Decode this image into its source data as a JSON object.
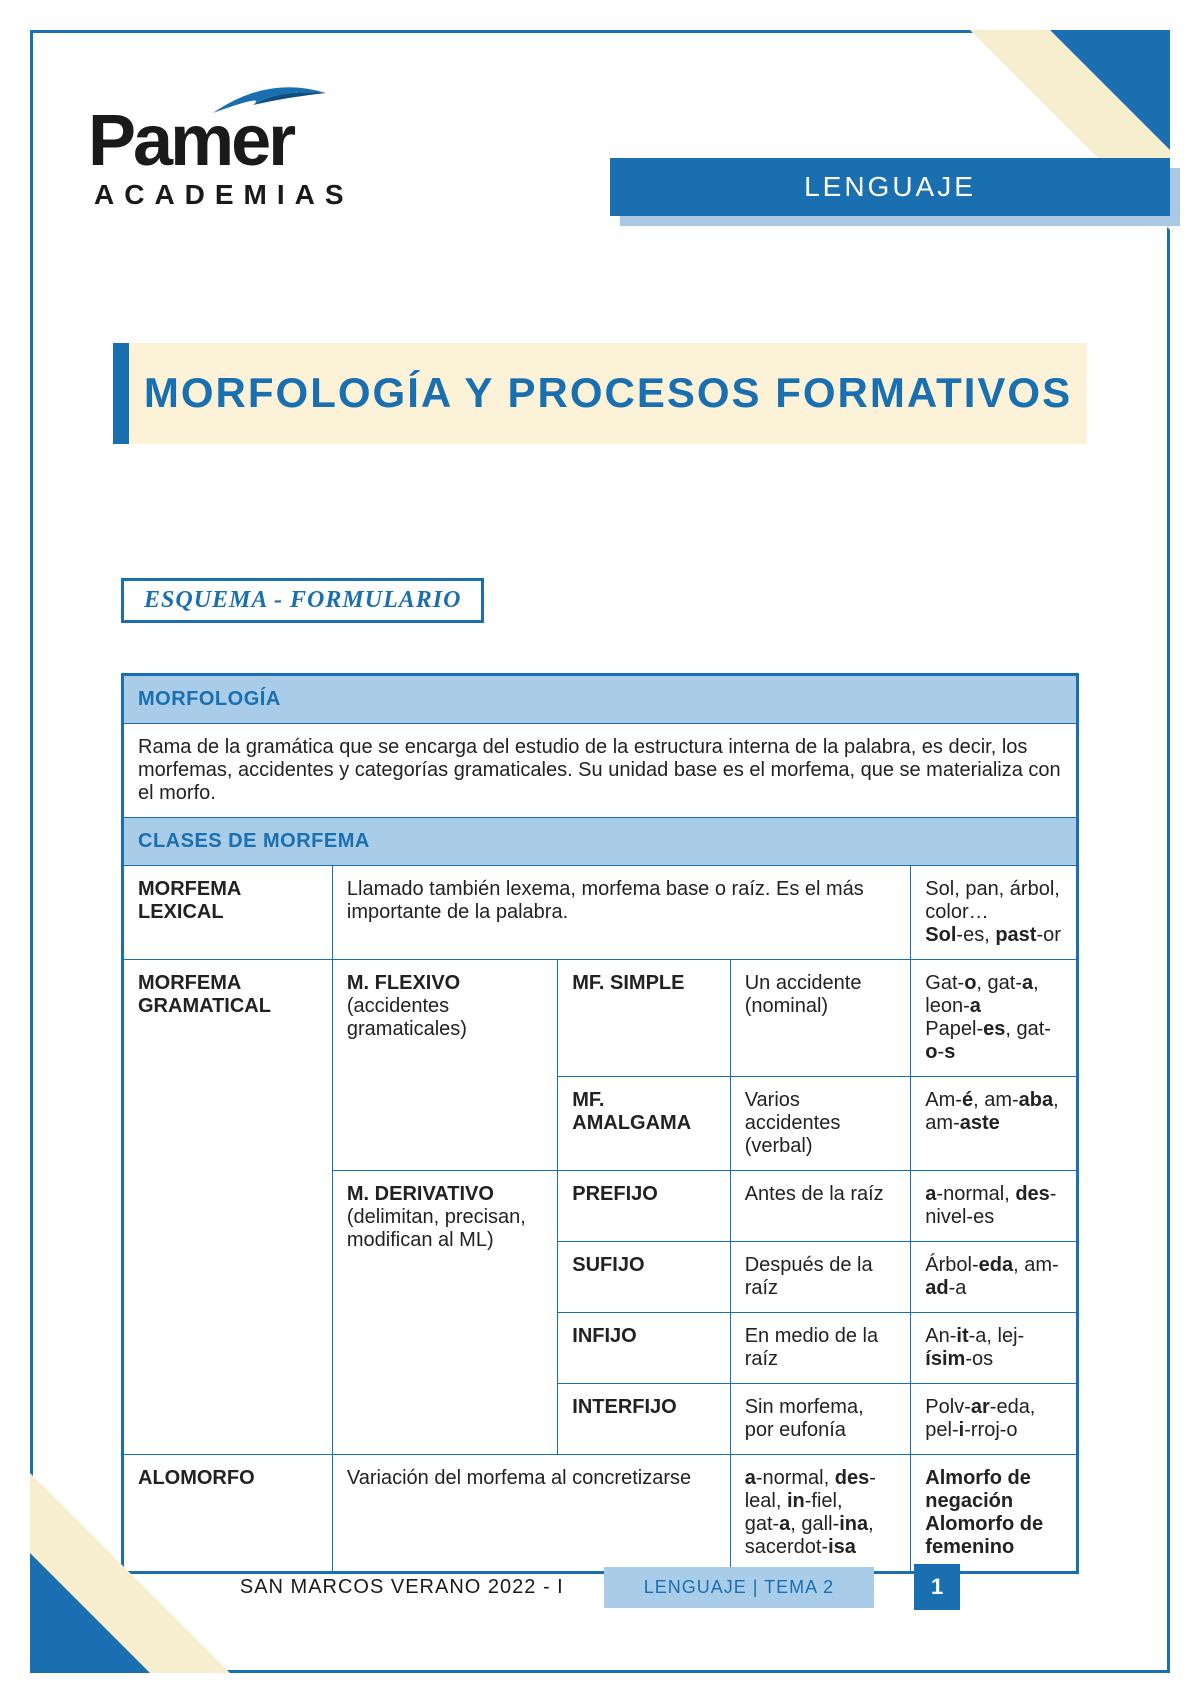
{
  "colors": {
    "primary": "#1a6fb0",
    "light_blue": "#a9cde9",
    "cream": "#fbf2d8",
    "corner_cream": "#f7edcf",
    "shadow_blue": "#a9c8e4",
    "text": "#222222"
  },
  "logo": {
    "name": "Pamer",
    "sub": "ACADEMIAS"
  },
  "subject": "LENGUAJE",
  "title": "MORFOLOGÍA Y PROCESOS FORMATIVOS",
  "section_label": "ESQUEMA - FORMULARIO",
  "table": {
    "header1": "MORFOLOGÍA",
    "definition": "Rama de la gramática que se encarga del estudio de la estructura interna de la palabra, es decir, los morfemas, accidentes y categorías gramaticales. Su unidad base es el morfema, que se materializa con el morfo.",
    "header2": "CLASES DE MORFEMA",
    "rows": {
      "lexical": {
        "label": "MORFEMA LEXICAL",
        "desc": "Llamado también lexema, morfema base o raíz. Es el más importante de la palabra.",
        "ex_html": "Sol, pan, árbol, color…<br><b>Sol</b>-es, <b>past</b>-or"
      },
      "gramatical": {
        "label": "MORFEMA GRAMATICAL",
        "flexivo": {
          "label_html": "<b>M. FLEXIVO</b><br>(accidentes gramaticales)",
          "simple": {
            "name": "MF. SIMPLE",
            "desc": "Un accidente (nominal)",
            "ex_html": "Gat-<b>o</b>, gat-<b>a</b>, leon-<b>a</b><br>Papel-<b>es</b>, gat-<b>o</b>-<b>s</b>"
          },
          "amalgama": {
            "name": "MF. AMALGAMA",
            "desc": "Varios accidentes (verbal)",
            "ex_html": "Am-<b>é</b>, am-<b>aba</b>, am-<b>aste</b>"
          }
        },
        "derivativo": {
          "label_html": "<b>M. DERIVATIVO</b><br>(delimitan, precisan, modifican al ML)",
          "prefijo": {
            "name": "PREFIJO",
            "desc": "Antes de la raíz",
            "ex_html": "<b>a</b>-normal, <b>des</b>-nivel-es"
          },
          "sufijo": {
            "name": "SUFIJO",
            "desc": "Después de la raíz",
            "ex_html": "Árbol-<b>eda</b>, am-<b>ad</b>-a"
          },
          "infijo": {
            "name": "INFIJO",
            "desc": "En medio de la raíz",
            "ex_html": "An-<b>it</b>-a, lej-<b>ísim</b>-os"
          },
          "interfijo": {
            "name": "INTERFIJO",
            "desc": "Sin morfema, por eufonía",
            "ex_html": "Polv-<b>ar</b>-eda, pel-<b>i</b>-rroj-o"
          }
        }
      },
      "alomorfo": {
        "label": "ALOMORFO",
        "desc": "Variación del morfema al concretizarse",
        "col3_html": "<b>a</b>-normal, <b>des</b>-leal, <b>in</b>-fiel,<br>gat-<b>a</b>, gall-<b>ina</b>, sacerdot-<b>isa</b>",
        "col4_html": "<b>Almorfo de negación</b><br><b>Alomorfo de femenino</b>"
      }
    }
  },
  "footer": {
    "left": "SAN MARCOS VERANO 2022 - I",
    "mid": "LENGUAJE | TEMA 2",
    "page": "1"
  }
}
